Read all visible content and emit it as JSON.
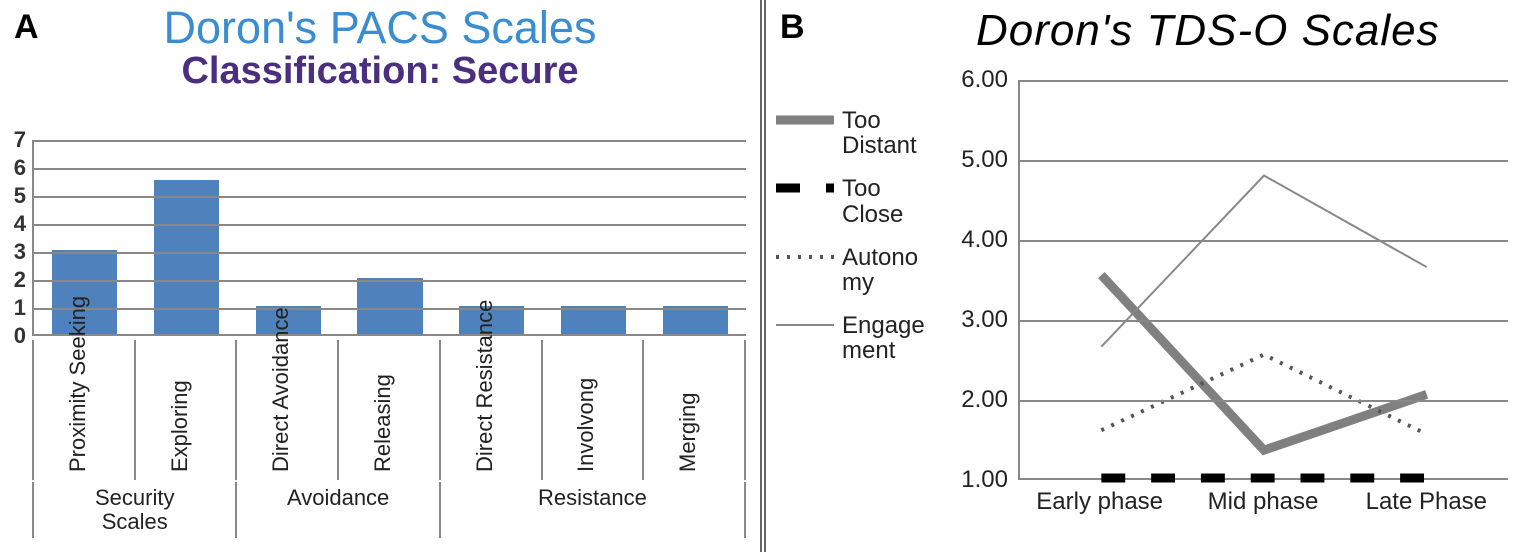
{
  "panelA": {
    "label": "A",
    "title": "Doron's PACS Scales",
    "title_color": "#3a8dd0",
    "subtitle": "Classification: Secure",
    "subtitle_color": "#4a2f7f",
    "chart": {
      "type": "bar",
      "ylim": [
        0,
        7
      ],
      "ytick_step": 1,
      "bar_color": "#4f81bd",
      "grid_color": "#888888",
      "background_color": "#ffffff",
      "categories": [
        "Proximity Seeking",
        "Exploring",
        "Direct Avoidance",
        "Releasing",
        "Direct Resistance",
        "Involvong",
        "Merging"
      ],
      "values": [
        3.0,
        5.5,
        1.0,
        2.0,
        1.0,
        1.0,
        1.0
      ],
      "groups": [
        {
          "label": "Security Scales",
          "span": 2
        },
        {
          "label": "Avoidance",
          "span": 2
        },
        {
          "label": "Resistance",
          "span": 3
        }
      ],
      "label_fontsize": 22
    }
  },
  "panelB": {
    "label": "B",
    "title": "Doron's TDS-O Scales",
    "title_color": "#000000",
    "chart": {
      "type": "line",
      "xcategories": [
        "Early phase",
        "Mid phase",
        "Late Phase"
      ],
      "ylim": [
        1.0,
        6.0
      ],
      "ytick_step": 1.0,
      "grid_color": "#888888",
      "background_color": "#ffffff",
      "label_fontsize": 24,
      "series": [
        {
          "name": "Too Distant",
          "color": "#808080",
          "width": 9,
          "dash": "none",
          "values": [
            3.55,
            1.35,
            2.05
          ]
        },
        {
          "name": "Too Close",
          "color": "#000000",
          "width": 9,
          "dash": "24 26",
          "values": [
            1.0,
            1.0,
            1.0
          ]
        },
        {
          "name": "Autonomy",
          "legend_text": "Autono my",
          "color": "#555555",
          "width": 4,
          "dash": "3 8",
          "values": [
            1.6,
            2.55,
            1.55
          ]
        },
        {
          "name": "Engagement",
          "legend_text": "Engage ment",
          "color": "#888888",
          "width": 2,
          "dash": "none",
          "values": [
            2.65,
            4.8,
            3.65
          ]
        }
      ]
    }
  }
}
